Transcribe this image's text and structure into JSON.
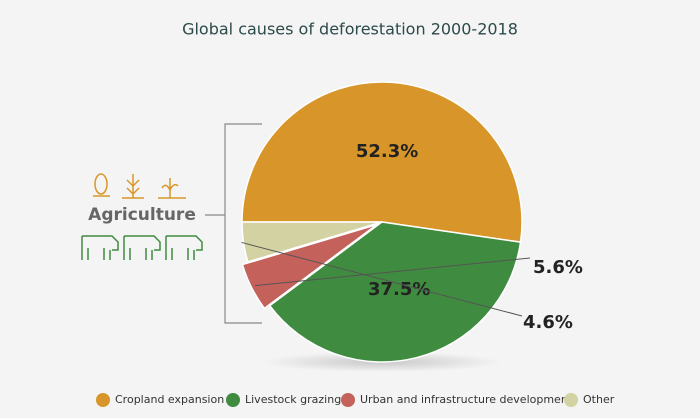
{
  "chart_data": {
    "type": "pie",
    "title": "Global causes of deforestation 2000-2018",
    "categories": [
      "Cropland expansion",
      "Livestock grazing",
      "Urban and infrastructure development",
      "Other"
    ],
    "values": [
      52.3,
      37.5,
      5.6,
      4.6
    ],
    "value_labels": [
      "52.3%",
      "37.5%",
      "5.6%",
      "4.6%"
    ],
    "colors": [
      "#d8962a",
      "#3f8b40",
      "#c3615a",
      "#d2d2a2"
    ],
    "annotation": "Agriculture"
  }
}
